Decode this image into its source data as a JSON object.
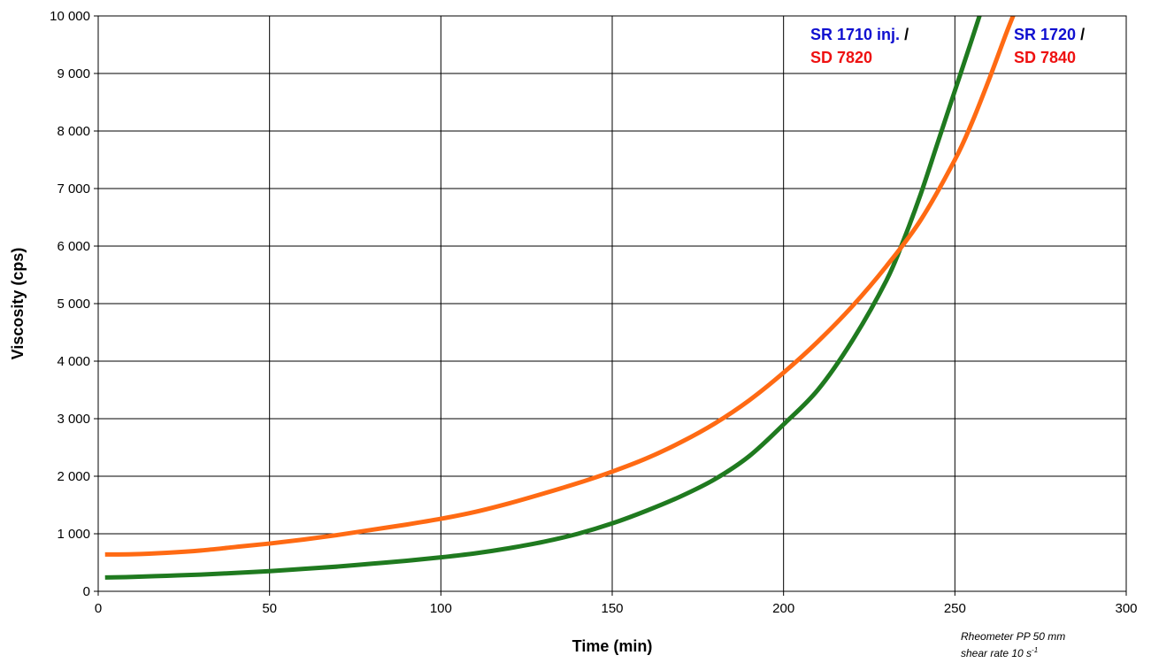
{
  "chart_data": {
    "type": "line",
    "xlabel": "Time (min)",
    "ylabel": "Viscosity (cps)",
    "xlim": [
      0,
      300
    ],
    "ylim": [
      0,
      10000
    ],
    "x_ticks": [
      0,
      50,
      100,
      150,
      200,
      250,
      300
    ],
    "x_tick_labels": [
      "0",
      "50",
      "100",
      "150",
      "200",
      "250",
      "300"
    ],
    "y_ticks": [
      0,
      1000,
      2000,
      3000,
      4000,
      5000,
      6000,
      7000,
      8000,
      9000,
      10000
    ],
    "y_tick_labels": [
      "0",
      "1 000",
      "2 000",
      "3 000",
      "4 000",
      "5 000",
      "6 000",
      "7 000",
      "8 000",
      "9 000",
      "10 000"
    ],
    "grid": true,
    "series": [
      {
        "color": "#1f7a1f",
        "x": [
          2,
          10,
          20,
          30,
          40,
          50,
          60,
          70,
          80,
          90,
          100,
          110,
          120,
          130,
          140,
          150,
          160,
          170,
          180,
          190,
          200,
          210,
          220,
          230,
          235,
          240,
          245,
          250,
          255,
          258
        ],
        "y": [
          240,
          250,
          270,
          290,
          320,
          350,
          390,
          430,
          480,
          530,
          590,
          660,
          750,
          860,
          1000,
          1180,
          1400,
          1650,
          1950,
          2350,
          2900,
          3500,
          4350,
          5400,
          6100,
          6900,
          7800,
          8700,
          9600,
          10150
        ]
      },
      {
        "color": "#ff6a13",
        "x": [
          2,
          10,
          20,
          30,
          40,
          50,
          60,
          70,
          80,
          90,
          100,
          110,
          120,
          130,
          140,
          150,
          160,
          170,
          180,
          190,
          200,
          210,
          220,
          230,
          240,
          250,
          255,
          260,
          265,
          268
        ],
        "y": [
          640,
          645,
          670,
          710,
          770,
          830,
          900,
          980,
          1070,
          1160,
          1260,
          1380,
          1530,
          1700,
          1880,
          2080,
          2310,
          2590,
          2920,
          3320,
          3800,
          4340,
          4950,
          5650,
          6450,
          7500,
          8150,
          8900,
          9700,
          10150
        ]
      }
    ],
    "legend": {
      "left_group": [
        {
          "text": "SR 1710 inj.",
          "color": "#1010d0"
        },
        {
          "text": " /",
          "color": "#000000"
        },
        {
          "text": "SD 7820",
          "color": "#ee1111"
        }
      ],
      "right_group": [
        {
          "text": "SR 1720",
          "color": "#1010d0"
        },
        {
          "text": " /",
          "color": "#000000"
        },
        {
          "text": "SD 7840",
          "color": "#ee1111"
        }
      ]
    },
    "note_line1": "Rheometer PP 50 mm",
    "note_line2": "shear rate 10 s",
    "note_superscript": "-1"
  }
}
